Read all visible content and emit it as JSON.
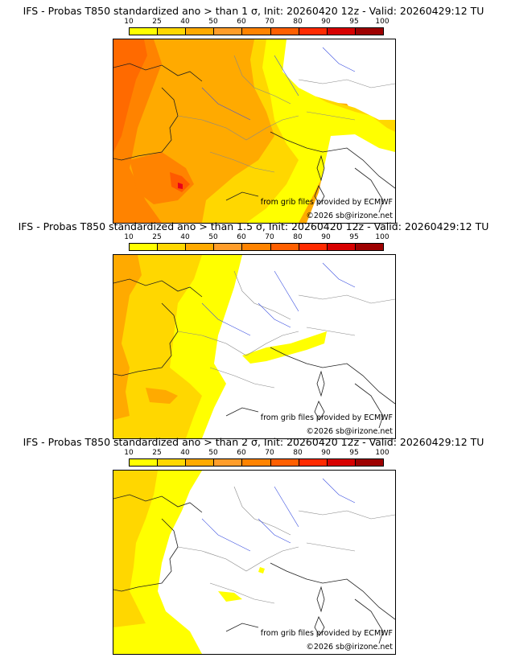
{
  "legend": {
    "ticks": [
      "10",
      "25",
      "40",
      "50",
      "60",
      "70",
      "80",
      "90",
      "95",
      "100"
    ],
    "colors": [
      "#ffff00",
      "#ffd700",
      "#ffaa00",
      "#ff9d2a",
      "#ff8300",
      "#ff5f00",
      "#ff2a00",
      "#d70000",
      "#9d0000",
      "#5a0000"
    ]
  },
  "panels": [
    {
      "title": "IFS - Probas T850  standardized ano > than 1 σ, Init: 20260420 12z - Valid: 20260429:12 TU",
      "source": "from grib files provided by ECMWF",
      "copyright": "©2026 sb@irizone.net"
    },
    {
      "title": "IFS - Probas T850  standardized ano > than 1.5 σ, Init: 20260420 12z - Valid: 20260429:12 TU",
      "source": "from grib files provided by ECMWF",
      "copyright": "©2026 sb@irizone.net"
    },
    {
      "title": "IFS - Probas T850  standardized ano > than 2 σ, Init: 20260420 12z - Valid: 20260429:12 TU",
      "source": "from grib files provided by ECMWF",
      "copyright": "©2026 sb@irizone.net"
    }
  ]
}
